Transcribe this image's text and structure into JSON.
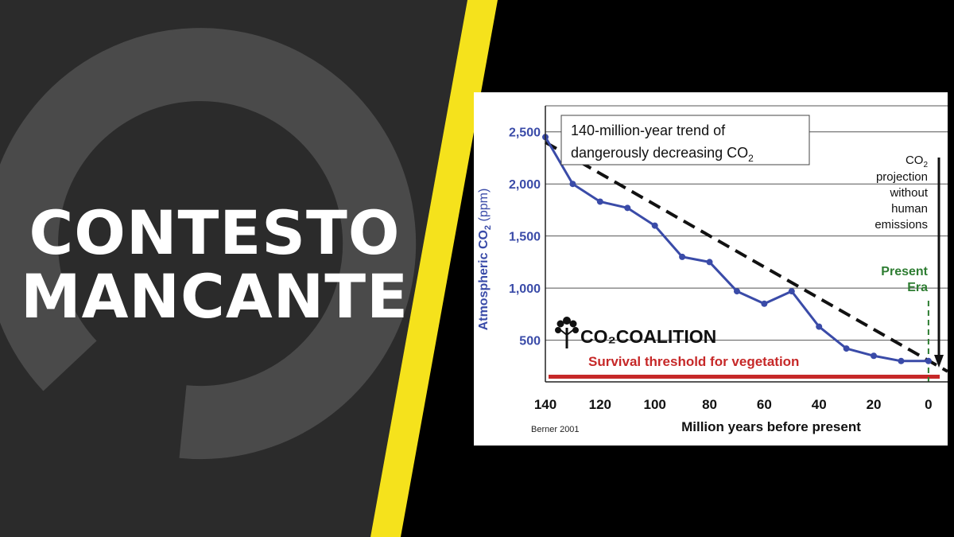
{
  "banner": {
    "line1": "CONTESTO",
    "line2": "MANCANTE"
  },
  "colors": {
    "panel_left": "#2b2b2b",
    "stripe": "#f5e21c",
    "right_bg": "#000000",
    "series": "#3a4ba8",
    "threshold": "#c62828",
    "present_line": "#2e7d32"
  },
  "chart_data": {
    "type": "line",
    "title": "140-million-year trend of dangerously decreasing CO",
    "title_line1": "140-million-year trend of",
    "title_line2": "dangerously decreasing CO",
    "subscript": "2",
    "ylabel": "Atmospheric CO",
    "ylabel_unit": "(ppm)",
    "xlabel": "Million years before present",
    "source": "Berner 2001",
    "logo": "CO₂COALITION",
    "xlim": [
      140,
      -7
    ],
    "ylim": [
      100,
      2750
    ],
    "x_ticks": [
      140,
      120,
      100,
      80,
      60,
      40,
      20,
      0
    ],
    "y_ticks": [
      {
        "value": 500,
        "label": "500"
      },
      {
        "value": 1000,
        "label": "1,000"
      },
      {
        "value": 1500,
        "label": "1,500"
      },
      {
        "value": 2000,
        "label": "2,000"
      },
      {
        "value": 2500,
        "label": "2,500"
      }
    ],
    "grid": true,
    "series": [
      {
        "x": [
          140,
          130,
          120,
          110,
          100,
          90,
          80,
          70,
          60,
          50,
          40,
          30,
          20,
          10,
          0
        ],
        "y": [
          2450,
          2000,
          1830,
          1770,
          1600,
          1300,
          1250,
          970,
          850,
          970,
          630,
          420,
          350,
          300,
          300
        ]
      }
    ],
    "trend": {
      "x": [
        140,
        -7
      ],
      "y": [
        2400,
        200
      ]
    },
    "threshold": {
      "y": 150,
      "label": "Survival threshold for vegetation"
    },
    "present_era": {
      "x": 0,
      "label_line1": "Present",
      "label_line2": "Era"
    },
    "projection": {
      "label_lines": [
        "CO",
        "projection",
        "without",
        "human",
        "emissions"
      ]
    }
  }
}
